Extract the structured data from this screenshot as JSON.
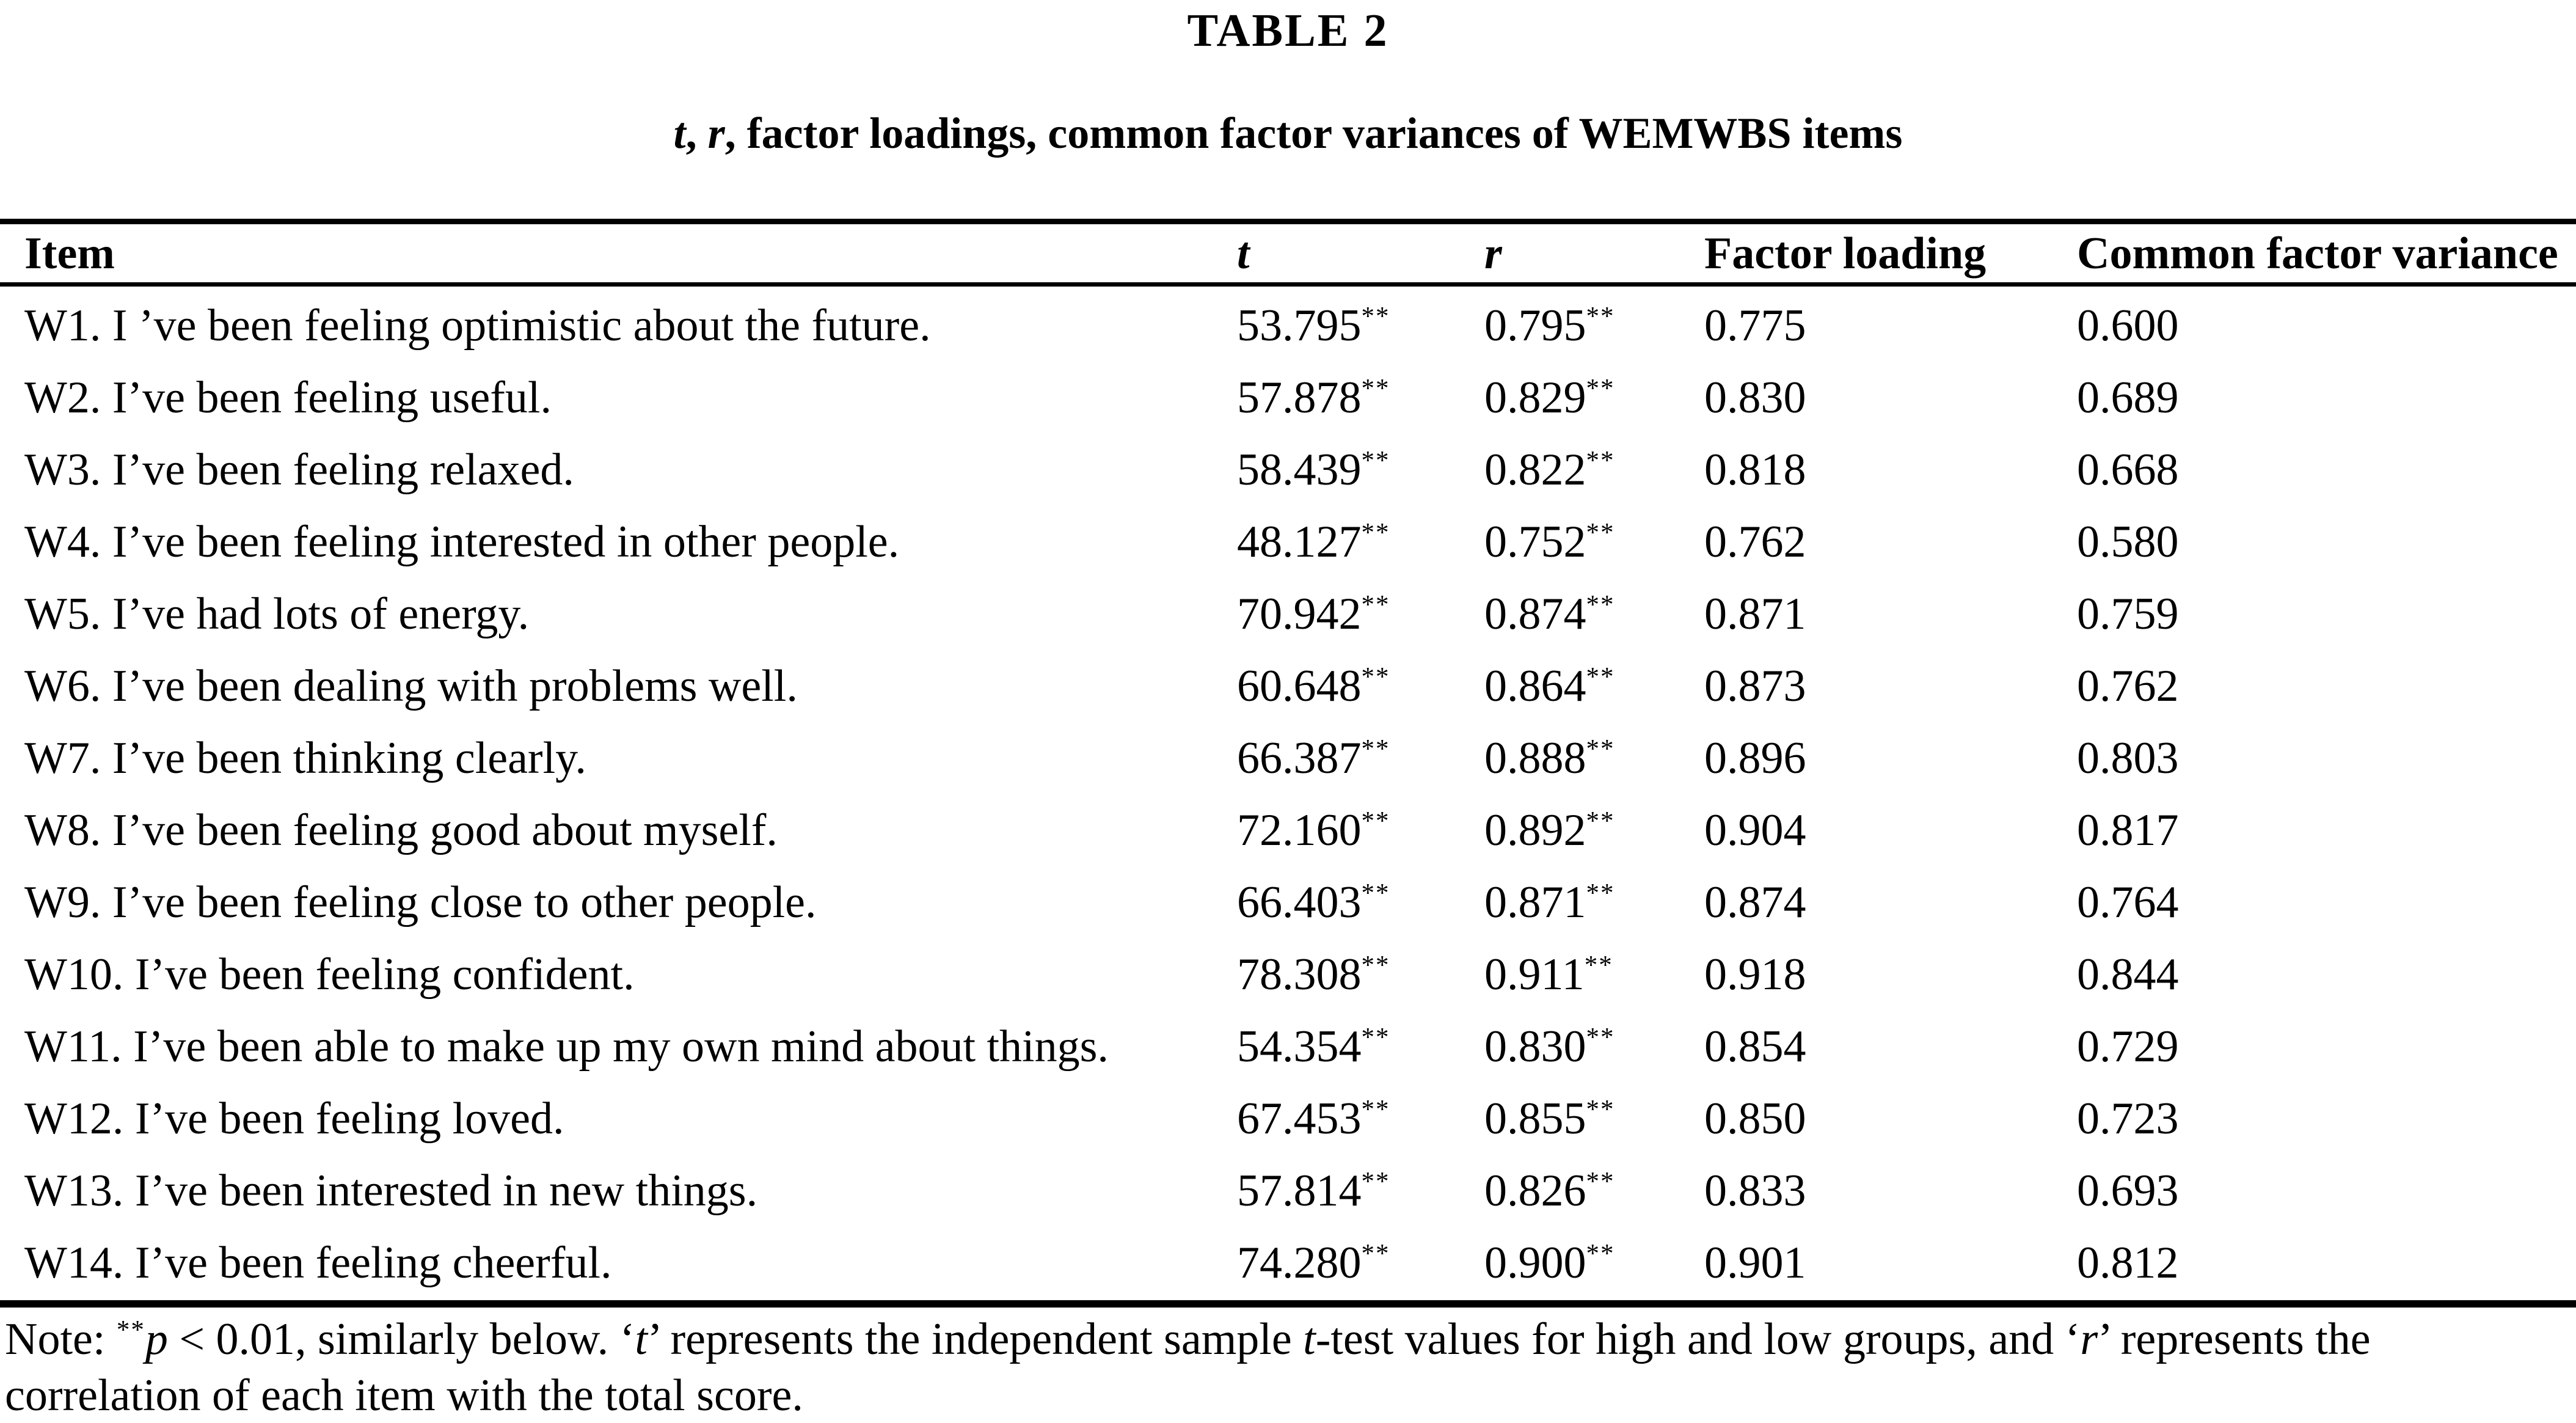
{
  "colors": {
    "text": "#000000",
    "background": "#ffffff"
  },
  "title": "TABLE 2",
  "subtitle_segments": [
    {
      "text": "t",
      "italic": true
    },
    {
      "text": ", "
    },
    {
      "text": "r",
      "italic": true
    },
    {
      "text": ", factor loadings, common factor variances of WEMWBS items"
    }
  ],
  "table": {
    "columns": [
      {
        "label": "Item",
        "italic": false
      },
      {
        "label": "t",
        "italic": true
      },
      {
        "label": "r",
        "italic": true
      },
      {
        "label": "Factor loading",
        "italic": false
      },
      {
        "label": "Common factor variance",
        "italic": false
      }
    ],
    "rows": [
      {
        "item": "W1. I ’ve been feeling optimistic about the future.",
        "t": "53.795**",
        "r": "0.795**",
        "factor_loading": "0.775",
        "common_factor_variance": "0.600"
      },
      {
        "item": "W2. I’ve been feeling useful.",
        "t": "57.878**",
        "r": "0.829**",
        "factor_loading": "0.830",
        "common_factor_variance": "0.689"
      },
      {
        "item": "W3. I’ve been feeling relaxed.",
        "t": "58.439**",
        "r": "0.822**",
        "factor_loading": "0.818",
        "common_factor_variance": "0.668"
      },
      {
        "item": "W4. I’ve been feeling interested in other people.",
        "t": "48.127**",
        "r": "0.752**",
        "factor_loading": "0.762",
        "common_factor_variance": "0.580"
      },
      {
        "item": "W5. I’ve had lots of energy.",
        "t": "70.942**",
        "r": "0.874**",
        "factor_loading": "0.871",
        "common_factor_variance": "0.759"
      },
      {
        "item": "W6. I’ve been dealing with problems well.",
        "t": "60.648**",
        "r": "0.864**",
        "factor_loading": "0.873",
        "common_factor_variance": "0.762"
      },
      {
        "item": "W7. I’ve been thinking clearly.",
        "t": "66.387**",
        "r": "0.888**",
        "factor_loading": "0.896",
        "common_factor_variance": "0.803"
      },
      {
        "item": "W8. I’ve been feeling good about myself.",
        "t": "72.160**",
        "r": "0.892**",
        "factor_loading": "0.904",
        "common_factor_variance": "0.817"
      },
      {
        "item": "W9. I’ve been feeling close to other people.",
        "t": "66.403**",
        "r": "0.871**",
        "factor_loading": "0.874",
        "common_factor_variance": "0.764"
      },
      {
        "item": "W10. I’ve been feeling confident.",
        "t": "78.308**",
        "r": "0.911**",
        "factor_loading": "0.918",
        "common_factor_variance": "0.844"
      },
      {
        "item": "W11. I’ve been able to make up my own mind about things.",
        "t": "54.354**",
        "r": "0.830**",
        "factor_loading": "0.854",
        "common_factor_variance": "0.729"
      },
      {
        "item": "W12. I’ve been feeling loved.",
        "t": "67.453**",
        "r": "0.855**",
        "factor_loading": "0.850",
        "common_factor_variance": "0.723"
      },
      {
        "item": "W13. I’ve been interested in new things.",
        "t": "57.814**",
        "r": "0.826**",
        "factor_loading": "0.833",
        "common_factor_variance": "0.693"
      },
      {
        "item": "W14. I’ve been feeling cheerful.",
        "t": "74.280**",
        "r": "0.900**",
        "factor_loading": "0.901",
        "common_factor_variance": "0.812"
      }
    ]
  },
  "note_segments": [
    {
      "text": "Note: "
    },
    {
      "text": "**",
      "sup": true
    },
    {
      "text": "p",
      "italic": true
    },
    {
      "text": " < 0.01, similarly below. ‘"
    },
    {
      "text": "t",
      "italic": true
    },
    {
      "text": "’ represents the independent sample "
    },
    {
      "text": "t",
      "italic": true
    },
    {
      "text": "-test values for high and low groups, and ‘"
    },
    {
      "text": "r",
      "italic": true
    },
    {
      "text": "’ represents the correlation of each item with the total score."
    }
  ]
}
